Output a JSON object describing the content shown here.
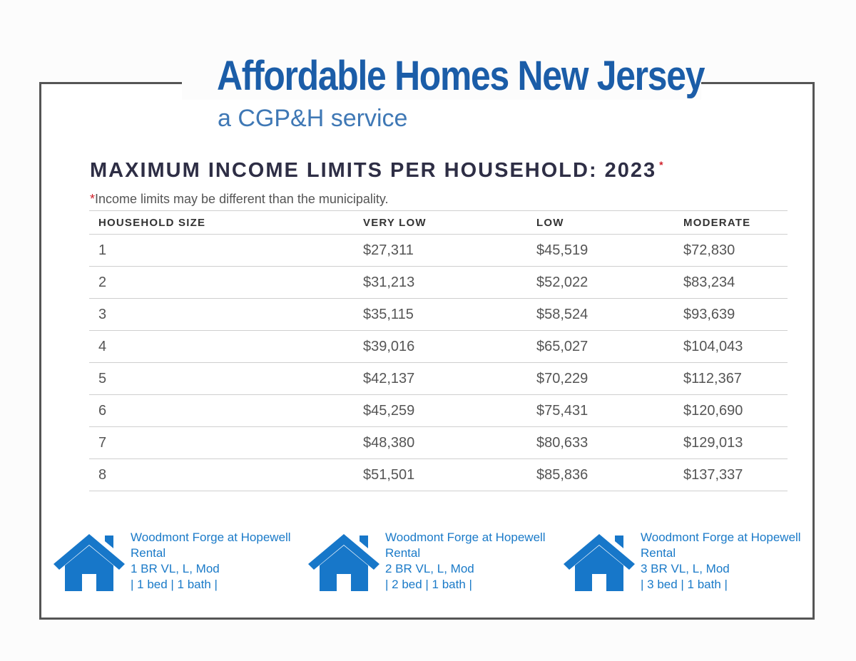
{
  "brand": {
    "name": "Affordable Homes New Jersey",
    "tagline": "a CGP&H service"
  },
  "heading": {
    "title": "MAXIMUM INCOME LIMITS PER HOUSEHOLD: 2023",
    "marker": "*"
  },
  "note": {
    "marker": "*",
    "text": "Income limits may be different than the municipality."
  },
  "table": {
    "headers": [
      "HOUSEHOLD SIZE",
      "VERY LOW",
      "LOW",
      "MODERATE"
    ],
    "rows": [
      [
        "1",
        "$27,311",
        "$45,519",
        "$72,830"
      ],
      [
        "2",
        "$31,213",
        "$52,022",
        "$83,234"
      ],
      [
        "3",
        "$35,115",
        "$58,524",
        "$93,639"
      ],
      [
        "4",
        "$39,016",
        "$65,027",
        "$104,043"
      ],
      [
        "5",
        "$42,137",
        "$70,229",
        "$112,367"
      ],
      [
        "6",
        "$45,259",
        "$75,431",
        "$120,690"
      ],
      [
        "7",
        "$48,380",
        "$80,633",
        "$129,013"
      ],
      [
        "8",
        "$51,501",
        "$85,836",
        "$137,337"
      ]
    ]
  },
  "listings": [
    {
      "icon": "house-icon",
      "name": "Woodmont Forge at Hopewell",
      "type": "Rental",
      "units": "1 BR VL, L, Mod",
      "details": "| 1 bed | 1 bath |"
    },
    {
      "icon": "house-icon",
      "name": "Woodmont Forge at Hopewell",
      "type": "Rental",
      "units": "2 BR VL, L, Mod",
      "details": "| 2 bed | 1 bath |"
    },
    {
      "icon": "house-icon",
      "name": "Woodmont Forge at Hopewell",
      "type": "Rental",
      "units": "3 BR VL, L, Mod",
      "details": "| 3 bed | 1 bath |"
    }
  ],
  "colors": {
    "brand": "#1b5da8",
    "link": "#1a7ac8",
    "icon": "#1777c9",
    "required_marker": "#d0202a"
  }
}
